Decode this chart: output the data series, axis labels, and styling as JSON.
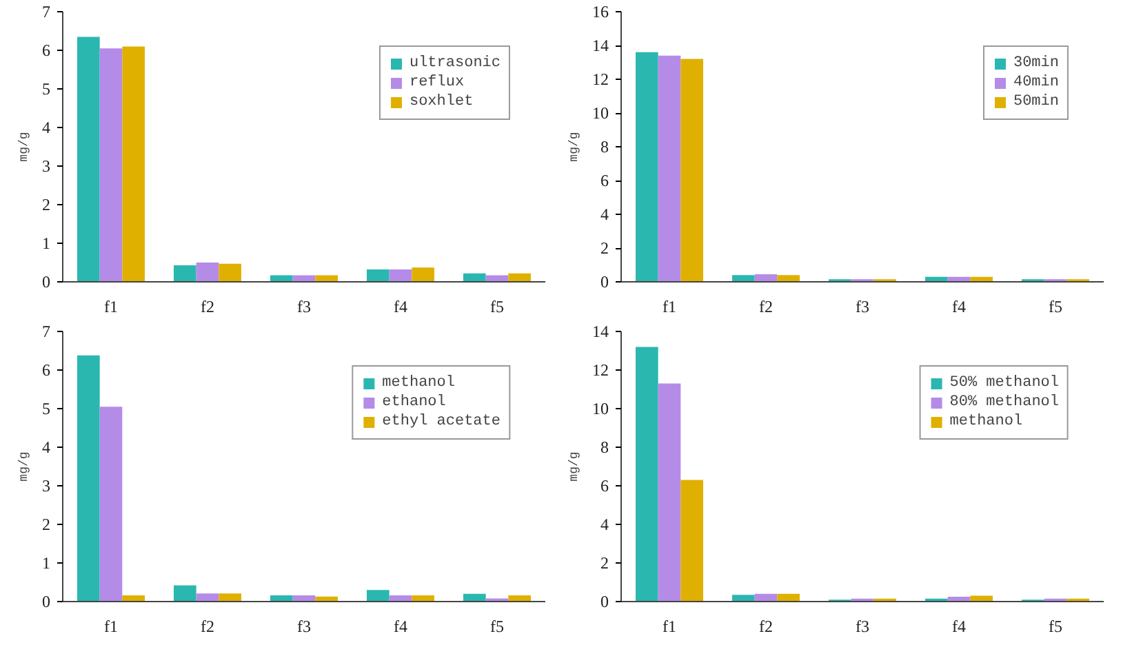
{
  "chart_data": [
    {
      "type": "bar",
      "categories": [
        "f1",
        "f2",
        "f3",
        "f4",
        "f5"
      ],
      "ylabel": "mg/g",
      "ylim": [
        0,
        7
      ],
      "yticks": [
        0,
        1,
        2,
        3,
        4,
        5,
        6,
        7
      ],
      "legend": "top right",
      "grid": false,
      "series": [
        {
          "name": "ultrasonic",
          "color": "#2ab7b0",
          "values": [
            6.35,
            0.43,
            0.17,
            0.32,
            0.22
          ]
        },
        {
          "name": "reflux",
          "color": "#b58be8",
          "values": [
            6.05,
            0.5,
            0.17,
            0.32,
            0.17
          ]
        },
        {
          "name": "soxhlet",
          "color": "#e0b000",
          "values": [
            6.1,
            0.47,
            0.17,
            0.37,
            0.22
          ]
        }
      ]
    },
    {
      "type": "bar",
      "categories": [
        "f1",
        "f2",
        "f3",
        "f4",
        "f5"
      ],
      "ylabel": "mg/g",
      "ylim": [
        0,
        16
      ],
      "yticks": [
        0,
        2,
        4,
        6,
        8,
        10,
        12,
        14,
        16
      ],
      "legend": "top right",
      "grid": false,
      "series": [
        {
          "name": "30min",
          "color": "#2ab7b0",
          "values": [
            13.6,
            0.4,
            0.15,
            0.3,
            0.15
          ]
        },
        {
          "name": "40min",
          "color": "#b58be8",
          "values": [
            13.4,
            0.45,
            0.15,
            0.3,
            0.15
          ]
        },
        {
          "name": "50min",
          "color": "#e0b000",
          "values": [
            13.2,
            0.4,
            0.15,
            0.3,
            0.15
          ]
        }
      ]
    },
    {
      "type": "bar",
      "categories": [
        "f1",
        "f2",
        "f3",
        "f4",
        "f5"
      ],
      "ylabel": "mg/g",
      "ylim": [
        0,
        7
      ],
      "yticks": [
        0,
        1,
        2,
        3,
        4,
        5,
        6,
        7
      ],
      "legend": "top right",
      "grid": false,
      "series": [
        {
          "name": "methanol",
          "color": "#2ab7b0",
          "values": [
            6.38,
            0.42,
            0.16,
            0.3,
            0.2
          ]
        },
        {
          "name": "ethanol",
          "color": "#b58be8",
          "values": [
            5.05,
            0.21,
            0.16,
            0.16,
            0.08
          ]
        },
        {
          "name": "ethyl acetate",
          "color": "#e0b000",
          "values": [
            0.16,
            0.21,
            0.13,
            0.16,
            0.16
          ]
        }
      ]
    },
    {
      "type": "bar",
      "categories": [
        "f1",
        "f2",
        "f3",
        "f4",
        "f5"
      ],
      "ylabel": "mg/g",
      "ylim": [
        0,
        14
      ],
      "yticks": [
        0,
        2,
        4,
        6,
        8,
        10,
        12,
        14
      ],
      "legend": "top right",
      "grid": false,
      "series": [
        {
          "name": "50% methanol",
          "color": "#2ab7b0",
          "values": [
            13.2,
            0.35,
            0.1,
            0.15,
            0.1
          ]
        },
        {
          "name": "80% methanol",
          "color": "#b58be8",
          "values": [
            11.3,
            0.4,
            0.15,
            0.25,
            0.15
          ]
        },
        {
          "name": "methanol",
          "color": "#e0b000",
          "values": [
            6.3,
            0.4,
            0.15,
            0.3,
            0.15
          ]
        }
      ]
    }
  ]
}
